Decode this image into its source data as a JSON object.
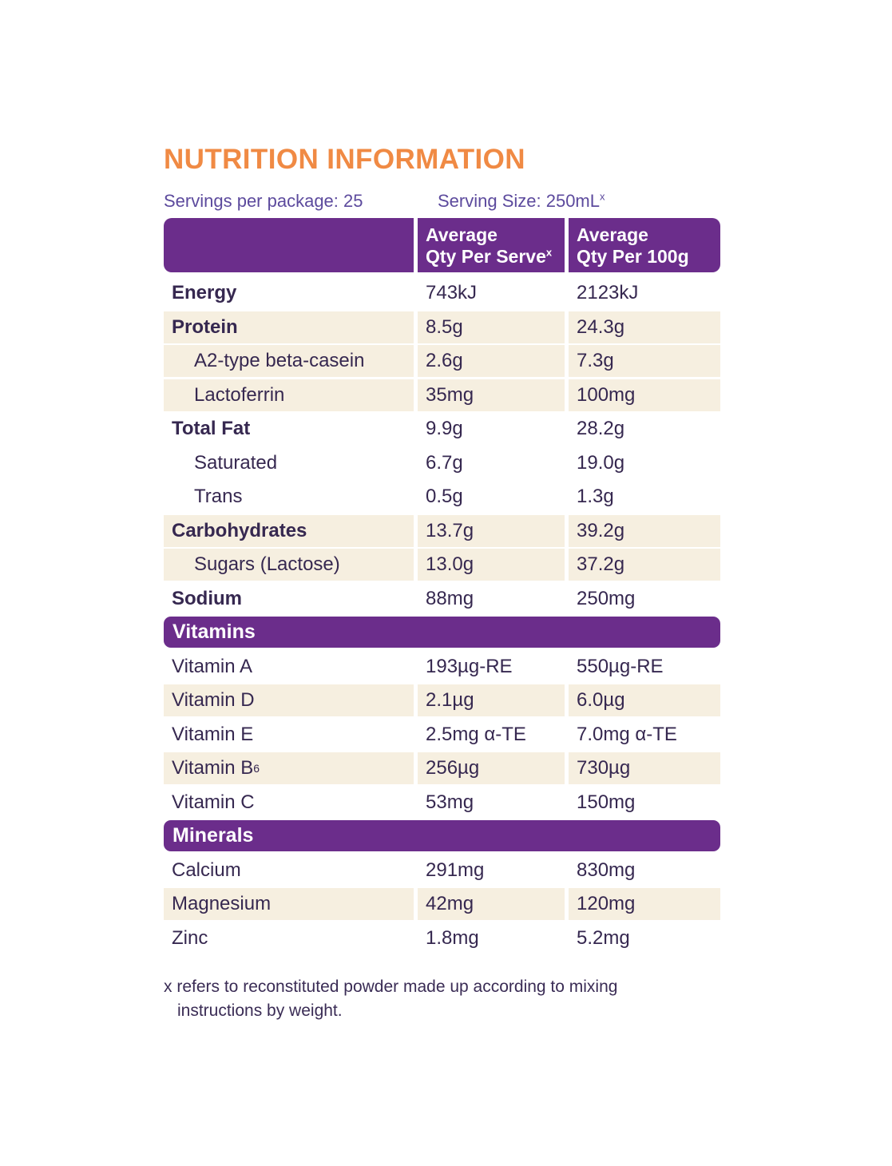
{
  "title": "NUTRITION INFORMATION",
  "serving_info": {
    "servings_per_package": "Servings per package: 25",
    "serving_size": "Serving Size: 250mL",
    "serving_size_sup": "x"
  },
  "table": {
    "header": {
      "per_serve_line1": "Average",
      "per_serve_line2": "Qty Per Serve",
      "per_serve_sup": "x",
      "per_100g_line1": "Average",
      "per_100g_line2": "Qty Per 100g"
    },
    "main_rows": [
      {
        "label": "Energy",
        "per_serve": "743kJ",
        "per_100g": "2123kJ"
      },
      {
        "label": "Protein",
        "per_serve": "8.5g",
        "per_100g": "24.3g"
      },
      {
        "label": "A2-type beta-casein",
        "per_serve": "2.6g",
        "per_100g": "7.3g"
      },
      {
        "label": "Lactoferrin",
        "per_serve": "35mg",
        "per_100g": "100mg"
      },
      {
        "label": "Total Fat",
        "per_serve": "9.9g",
        "per_100g": "28.2g"
      },
      {
        "label": "Saturated",
        "per_serve": "6.7g",
        "per_100g": "19.0g"
      },
      {
        "label": "Trans",
        "per_serve": "0.5g",
        "per_100g": "1.3g"
      },
      {
        "label": "Carbohydrates",
        "per_serve": "13.7g",
        "per_100g": "39.2g"
      },
      {
        "label": "Sugars (Lactose)",
        "per_serve": "13.0g",
        "per_100g": "37.2g"
      },
      {
        "label": "Sodium",
        "per_serve": "88mg",
        "per_100g": "250mg"
      }
    ],
    "vitamins_header": "Vitamins",
    "vitamin_rows": [
      {
        "label": "Vitamin A",
        "per_serve": "193µg-RE",
        "per_100g": "550µg-RE"
      },
      {
        "label": "Vitamin D",
        "per_serve": "2.1µg",
        "per_100g": "6.0µg"
      },
      {
        "label": "Vitamin E",
        "per_serve": "2.5mg α-TE",
        "per_100g": "7.0mg α-TE"
      },
      {
        "label": "Vitamin B",
        "label_sub": "6",
        "per_serve": "256µg",
        "per_100g": "730µg"
      },
      {
        "label": "Vitamin C",
        "per_serve": "53mg",
        "per_100g": "150mg"
      }
    ],
    "minerals_header": "Minerals",
    "mineral_rows": [
      {
        "label": "Calcium",
        "per_serve": "291mg",
        "per_100g": "830mg"
      },
      {
        "label": "Magnesium",
        "per_serve": "42mg",
        "per_100g": "120mg"
      },
      {
        "label": "Zinc",
        "per_serve": "1.8mg",
        "per_100g": "5.2mg"
      }
    ]
  },
  "footnote": {
    "line1": "x refers to reconstituted powder made up according to mixing",
    "line2": "instructions by weight."
  },
  "colors": {
    "accent_orange": "#F08A44",
    "brand_purple": "#6B2D8B",
    "row_cream": "#F6EFE0",
    "text_dark": "#362850",
    "text_purple": "#5C4A9D"
  }
}
